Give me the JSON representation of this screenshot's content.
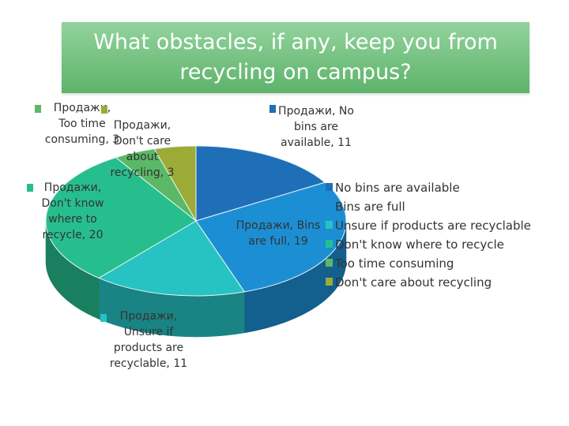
{
  "chart_data": {
    "type": "pie",
    "title": "What obstacles, if any, keep you from recycling on campus?",
    "series_name": "Продажи",
    "slices": [
      {
        "label": "No bins are available",
        "value": 11,
        "color": "#1f6fb8",
        "side": "#15497a",
        "data_label": [
          "Продажи, No",
          "bins are",
          "available, 11"
        ]
      },
      {
        "label": "Bins are full",
        "value": 19,
        "color": "#1c8fd4",
        "side": "#135f8e",
        "data_label": [
          "Продажи, Bins",
          "are full, 19"
        ]
      },
      {
        "label": "Unsure if products are recyclable",
        "value": 11,
        "color": "#27c2c2",
        "side": "#1a8383",
        "data_label": [
          "Продажи,",
          "Unsure if",
          "products are",
          "recyclable, 11"
        ]
      },
      {
        "label": "Don't know where to recycle",
        "value": 20,
        "color": "#27be8d",
        "side": "#1a7f5e",
        "data_label": [
          "Продажи,",
          "Don't know",
          "where to",
          "recycle, 20"
        ]
      },
      {
        "label": "Too time consuming",
        "value": 3,
        "color": "#5bb867",
        "side": "#3d7b45",
        "data_label": [
          "Продажи,",
          "Too time",
          "consuming, 3"
        ]
      },
      {
        "label": "Don't care about recycling",
        "value": 3,
        "color": "#9bab35",
        "side": "#677223",
        "data_label": [
          "Продажи,",
          "Don't care",
          "about",
          "recycling, 3"
        ]
      }
    ],
    "legend_position": "right"
  }
}
